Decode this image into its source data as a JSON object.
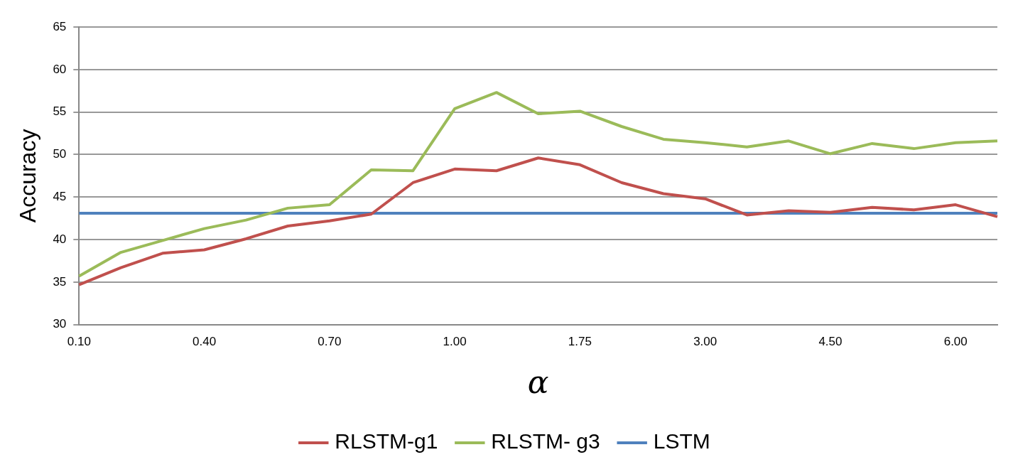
{
  "chart_data": {
    "type": "line",
    "xlabel": "α",
    "ylabel": "Accuracy",
    "categories": [
      "0.10",
      null,
      null,
      "0.40",
      null,
      null,
      "0.70",
      null,
      null,
      "1.00",
      null,
      null,
      "1.75",
      null,
      null,
      "3.00",
      null,
      null,
      "4.50",
      null,
      null,
      "6.00",
      null
    ],
    "series": [
      {
        "name": "RLSTM-g1",
        "color": "#c0504d",
        "values": [
          34.7,
          36.7,
          38.4,
          38.8,
          40.1,
          41.6,
          42.2,
          43.0,
          46.7,
          48.3,
          48.1,
          49.6,
          48.8,
          46.7,
          45.4,
          44.8,
          42.9,
          43.4,
          43.2,
          43.8,
          43.5,
          44.1,
          42.7
        ]
      },
      {
        "name": "RLSTM- g3",
        "color": "#9bbb59",
        "values": [
          35.7,
          38.5,
          39.9,
          41.3,
          42.3,
          43.7,
          44.1,
          48.2,
          48.1,
          55.4,
          57.3,
          54.8,
          55.1,
          53.3,
          51.8,
          51.4,
          50.9,
          51.6,
          50.1,
          51.3,
          50.7,
          51.4,
          51.6
        ]
      },
      {
        "name": "LSTM",
        "color": "#4f81bd",
        "values": [
          43.1,
          43.1,
          43.1,
          43.1,
          43.1,
          43.1,
          43.1,
          43.1,
          43.1,
          43.1,
          43.1,
          43.1,
          43.1,
          43.1,
          43.1,
          43.1,
          43.1,
          43.1,
          43.1,
          43.1,
          43.1,
          43.1,
          43.1
        ]
      }
    ],
    "ylim": [
      30,
      65
    ],
    "yticks": [
      30,
      35,
      40,
      45,
      50,
      55,
      60,
      65
    ],
    "grid": "y",
    "legend": "bottom",
    "marker": "none",
    "line_style": "solid"
  }
}
